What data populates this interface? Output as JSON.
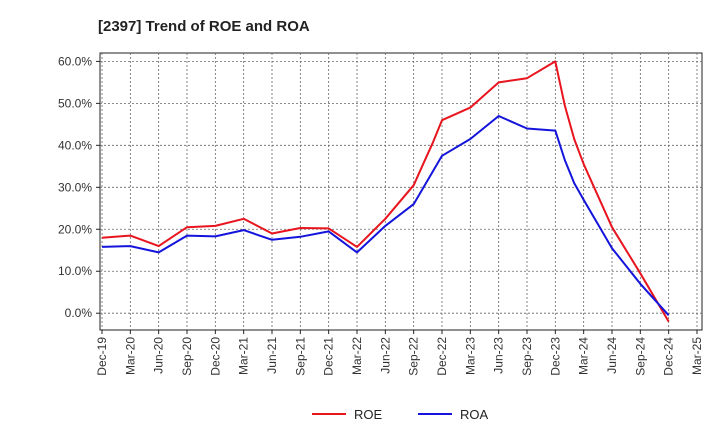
{
  "chart_data": {
    "type": "line",
    "title": "[2397]  Trend of ROE and ROA",
    "x_ticks": [
      "Dec-19",
      "Mar-20",
      "Jun-20",
      "Sep-20",
      "Dec-20",
      "Mar-21",
      "Jun-21",
      "Sep-21",
      "Dec-21",
      "Mar-22",
      "Jun-22",
      "Sep-22",
      "Dec-22",
      "Mar-23",
      "Jun-23",
      "Sep-23",
      "Dec-23",
      "Mar-24",
      "Jun-24",
      "Sep-24",
      "Dec-24",
      "Mar-25"
    ],
    "y_ticks": [
      "0.0%",
      "10.0%",
      "20.0%",
      "30.0%",
      "40.0%",
      "50.0%",
      "60.0%"
    ],
    "ylim": [
      -4,
      62
    ],
    "grid": true,
    "legend_position": "bottom",
    "series": [
      {
        "name": "ROE",
        "color": "#e8141e",
        "x": [
          "Dec-19",
          "Mar-20",
          "Jun-20",
          "Sep-20",
          "Dec-20",
          "Mar-21",
          "Jun-21",
          "Sep-21",
          "Dec-21",
          "Mar-22",
          "Jun-22",
          "Sep-22",
          "Oct-22",
          "Nov-22",
          "Dec-22",
          "Mar-23",
          "Jun-23",
          "Sep-23",
          "Dec-23",
          "Jan-24",
          "Feb-24",
          "Mar-24",
          "Jun-24",
          "Sep-24",
          "Dec-24"
        ],
        "values": [
          18.0,
          18.5,
          16.0,
          20.5,
          20.8,
          22.5,
          19.0,
          20.3,
          20.2,
          15.8,
          22.5,
          30.5,
          35.5,
          40.5,
          46.0,
          49.0,
          55.0,
          56.0,
          60.0,
          49.5,
          41.5,
          35.5,
          20.5,
          9.5,
          -2.0
        ]
      },
      {
        "name": "ROA",
        "color": "#1414dc",
        "x": [
          "Dec-19",
          "Mar-20",
          "Jun-20",
          "Sep-20",
          "Dec-20",
          "Mar-21",
          "Jun-21",
          "Sep-21",
          "Dec-21",
          "Mar-22",
          "Jun-22",
          "Sep-22",
          "Dec-22",
          "Mar-23",
          "Jun-23",
          "Sep-23",
          "Dec-23",
          "Jan-24",
          "Feb-24",
          "Mar-24",
          "Jun-24",
          "Sep-24",
          "Dec-24"
        ],
        "values": [
          15.8,
          16.0,
          14.5,
          18.5,
          18.3,
          19.8,
          17.5,
          18.2,
          19.5,
          14.5,
          20.8,
          26.0,
          37.5,
          41.5,
          47.0,
          44.0,
          43.5,
          36.5,
          31.0,
          27.0,
          15.5,
          7.0,
          -0.5
        ]
      }
    ]
  }
}
